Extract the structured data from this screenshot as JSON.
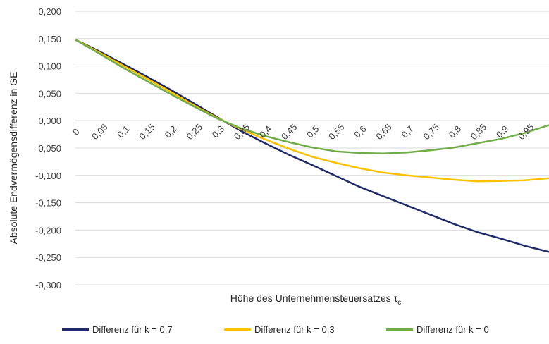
{
  "chart_data": {
    "type": "line",
    "xlabel": "Höhe des Unternehmensteuersatzes",
    "xlabel_symbol": "τ",
    "xlabel_subscript": "c",
    "ylabel": "Absolute Endvermögensdifferenz in GE",
    "ylim": [
      -0.3,
      0.2
    ],
    "yticks": [
      "0,200",
      "0,150",
      "0,100",
      "0,050",
      "0,000",
      "-0,050",
      "-0,100",
      "-0,150",
      "-0,200",
      "-0,250",
      "-0,300"
    ],
    "ytick_values": [
      0.2,
      0.15,
      0.1,
      0.05,
      0.0,
      -0.05,
      -0.1,
      -0.15,
      -0.2,
      -0.25,
      -0.3
    ],
    "xlim": [
      0,
      1
    ],
    "xticks": [
      "0",
      "0,05",
      "0,1",
      "0,15",
      "0,2",
      "0,25",
      "0,3",
      "0,35",
      "0,4",
      "0,45",
      "0,5",
      "0,55",
      "0,6",
      "0,65",
      "0,7",
      "0,75",
      "0,8",
      "0,85",
      "0,9",
      "0,95"
    ],
    "xtick_values": [
      0,
      0.05,
      0.1,
      0.15,
      0.2,
      0.25,
      0.3,
      0.35,
      0.4,
      0.45,
      0.5,
      0.55,
      0.6,
      0.65,
      0.7,
      0.75,
      0.8,
      0.85,
      0.9,
      0.95
    ],
    "grid": true,
    "legend_position": "bottom",
    "x": [
      0,
      0.05,
      0.1,
      0.15,
      0.2,
      0.25,
      0.3,
      0.35,
      0.4,
      0.45,
      0.5,
      0.55,
      0.6,
      0.65,
      0.7,
      0.75,
      0.8,
      0.85,
      0.9,
      0.95,
      1.0
    ],
    "series": [
      {
        "name": "Differenz für k = 0,7",
        "color": "#1f2a6b",
        "values": [
          0.148,
          0.127,
          0.104,
          0.081,
          0.057,
          0.032,
          0.006,
          -0.019,
          -0.041,
          -0.062,
          -0.081,
          -0.101,
          -0.121,
          -0.138,
          -0.155,
          -0.172,
          -0.189,
          -0.204,
          -0.216,
          -0.229,
          -0.24
        ]
      },
      {
        "name": "Differenz für k = 0,3",
        "color": "#ffc000",
        "values": [
          0.148,
          0.125,
          0.101,
          0.077,
          0.053,
          0.028,
          0.005,
          -0.016,
          -0.034,
          -0.051,
          -0.066,
          -0.077,
          -0.087,
          -0.095,
          -0.1,
          -0.104,
          -0.108,
          -0.111,
          -0.11,
          -0.109,
          -0.105
        ]
      },
      {
        "name": "Differenz für k = 0",
        "color": "#70ad47",
        "values": [
          0.148,
          0.123,
          0.097,
          0.073,
          0.049,
          0.026,
          0.004,
          -0.014,
          -0.028,
          -0.039,
          -0.049,
          -0.056,
          -0.059,
          -0.06,
          -0.058,
          -0.054,
          -0.049,
          -0.041,
          -0.033,
          -0.022,
          -0.008
        ]
      }
    ]
  }
}
